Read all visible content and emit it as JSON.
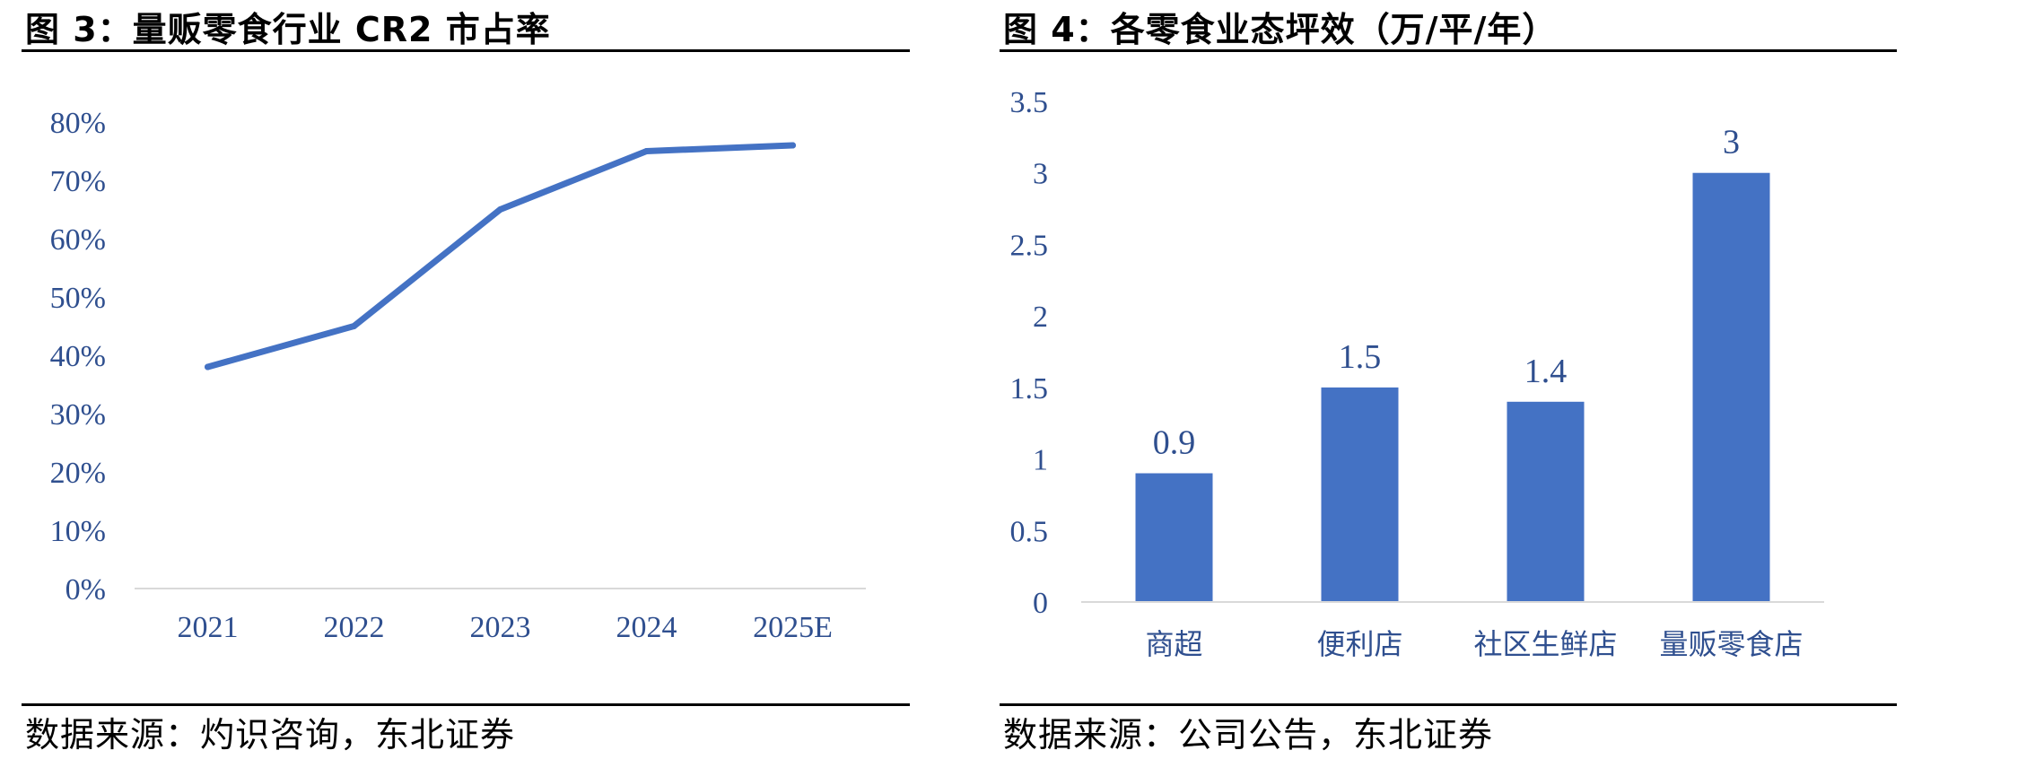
{
  "charts": [
    {
      "title": "图 3：量贩零食行业 CR2 市占率",
      "source": "数据来源：灼识咨询，东北证券",
      "chart_data": {
        "type": "line",
        "categories": [
          "2021",
          "2022",
          "2023",
          "2024",
          "2025E"
        ],
        "series": [
          {
            "values": [
              0.38,
              0.45,
              0.65,
              0.75,
              0.76
            ]
          }
        ],
        "yticks": [
          "0%",
          "10%",
          "20%",
          "30%",
          "40%",
          "50%",
          "60%",
          "70%",
          "80%"
        ],
        "ylim": [
          0,
          0.8
        ],
        "grid": false,
        "color": "#4472C4"
      }
    },
    {
      "title": "图 4：各零食业态坪效（万/平/年）",
      "source": "数据来源：公司公告，东北证券",
      "chart_data": {
        "type": "bar",
        "categories": [
          "商超",
          "便利店",
          "社区生鲜店",
          "量贩零食店"
        ],
        "values": [
          0.9,
          1.5,
          1.4,
          3
        ],
        "data_labels": [
          "0.9",
          "1.5",
          "1.4",
          "3"
        ],
        "yticks": [
          "0",
          "0.5",
          "1",
          "1.5",
          "2",
          "2.5",
          "3",
          "3.5"
        ],
        "ylim": [
          0,
          3.5
        ],
        "grid": false,
        "color": "#4472C4"
      }
    }
  ]
}
